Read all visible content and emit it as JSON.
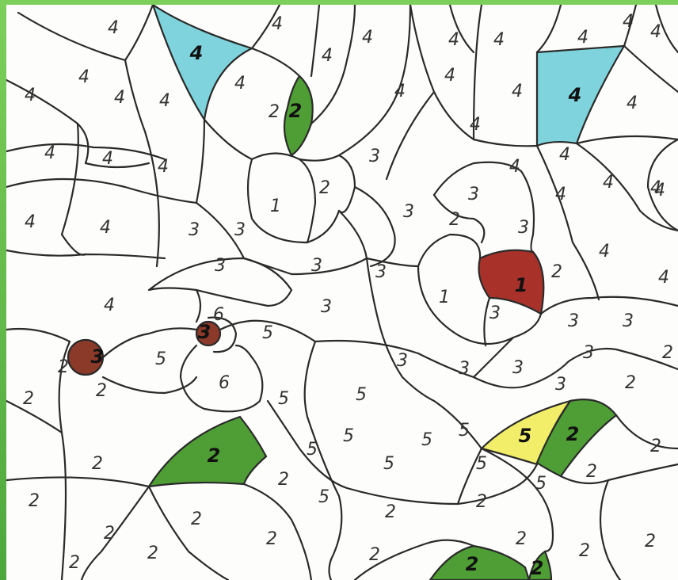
{
  "colors": {
    "page_bg": "#5fb84a",
    "paper": "#fdfdfb",
    "outline": "#2a2a2a",
    "color_1": "#a8322a",
    "color_2": "#4f9e35",
    "color_3": "#8b3a2a",
    "color_4": "#7fd3dc",
    "color_5": "#f2ee6a"
  },
  "regions": [
    {
      "name": "region-4-teal-top-left",
      "color_key": "color_4",
      "label": "4"
    },
    {
      "name": "region-4-teal-top-right",
      "color_key": "color_4",
      "label": "4"
    },
    {
      "name": "region-2-green-leaf",
      "color_key": "color_2",
      "label": "2"
    },
    {
      "name": "region-1-red-petal",
      "color_key": "color_1",
      "label": "1"
    },
    {
      "name": "region-3-brown-dot-left",
      "color_key": "color_3",
      "label": "3"
    },
    {
      "name": "region-3-brown-dot-center",
      "color_key": "color_3",
      "label": "3"
    },
    {
      "name": "region-2-green-bottom-left",
      "color_key": "color_2",
      "label": "2"
    },
    {
      "name": "region-5-yellow",
      "color_key": "color_5",
      "label": "5"
    },
    {
      "name": "region-2-green-right",
      "color_key": "color_2",
      "label": "2"
    },
    {
      "name": "region-2-green-bottom-center",
      "color_key": "color_2",
      "label": "2"
    },
    {
      "name": "region-2-green-bottom-small",
      "color_key": "color_2",
      "label": "2"
    }
  ],
  "numbers": [
    {
      "t": "4"
    },
    {
      "t": "4"
    },
    {
      "t": "4"
    },
    {
      "t": "4"
    },
    {
      "t": "4"
    },
    {
      "t": "4"
    },
    {
      "t": "4"
    },
    {
      "t": "4"
    },
    {
      "t": "4"
    },
    {
      "t": "4"
    },
    {
      "t": "4"
    },
    {
      "t": "4"
    },
    {
      "t": "4"
    },
    {
      "t": "4"
    },
    {
      "t": "4"
    },
    {
      "t": "4"
    },
    {
      "t": "4"
    },
    {
      "t": "4"
    },
    {
      "t": "4"
    },
    {
      "t": "4"
    },
    {
      "t": "4"
    },
    {
      "t": "4"
    },
    {
      "t": "4"
    },
    {
      "t": "4"
    },
    {
      "t": "4"
    },
    {
      "t": "4"
    },
    {
      "t": "4"
    },
    {
      "t": "4"
    },
    {
      "t": "4"
    },
    {
      "t": "4"
    },
    {
      "t": "2"
    },
    {
      "t": "1"
    },
    {
      "t": "2"
    },
    {
      "t": "3"
    },
    {
      "t": "3"
    },
    {
      "t": "3"
    },
    {
      "t": "3"
    },
    {
      "t": "3"
    },
    {
      "t": "3"
    },
    {
      "t": "2"
    },
    {
      "t": "3"
    },
    {
      "t": "3"
    },
    {
      "t": "3"
    },
    {
      "t": "2"
    },
    {
      "t": "1"
    },
    {
      "t": "3"
    },
    {
      "t": "3"
    },
    {
      "t": "3"
    },
    {
      "t": "3"
    },
    {
      "t": "3"
    },
    {
      "t": "3"
    },
    {
      "t": "3"
    },
    {
      "t": "3"
    },
    {
      "t": "3"
    },
    {
      "t": "4"
    },
    {
      "t": "2"
    },
    {
      "t": "2"
    },
    {
      "t": "2"
    },
    {
      "t": "5"
    },
    {
      "t": "6"
    },
    {
      "t": "5"
    },
    {
      "t": "6"
    },
    {
      "t": "5"
    },
    {
      "t": "5"
    },
    {
      "t": "5"
    },
    {
      "t": "5"
    },
    {
      "t": "5"
    },
    {
      "t": "5"
    },
    {
      "t": "5"
    },
    {
      "t": "5"
    },
    {
      "t": "5"
    },
    {
      "t": "5"
    },
    {
      "t": "2"
    },
    {
      "t": "2"
    },
    {
      "t": "2"
    },
    {
      "t": "2"
    },
    {
      "t": "2"
    },
    {
      "t": "2"
    },
    {
      "t": "2"
    },
    {
      "t": "2"
    },
    {
      "t": "2"
    },
    {
      "t": "2"
    },
    {
      "t": "2"
    },
    {
      "t": "2"
    },
    {
      "t": "2"
    },
    {
      "t": "2"
    },
    {
      "t": "2"
    },
    {
      "t": "2"
    },
    {
      "t": "2"
    },
    {
      "t": "2"
    },
    {
      "t": "4"
    },
    {
      "t": "4"
    }
  ]
}
